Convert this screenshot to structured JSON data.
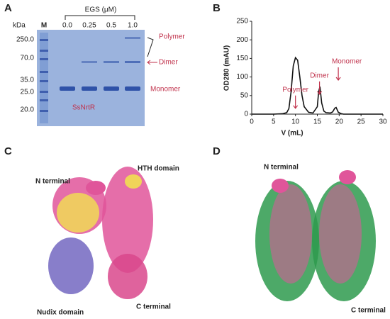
{
  "panels": [
    "A",
    "B",
    "C",
    "D"
  ],
  "panel_a": {
    "kda": "kDa",
    "marker_lane": "M",
    "egs": "EGS (μM)",
    "lanes": [
      "0.0",
      "0.25",
      "0.5",
      "1.0"
    ],
    "markers": [
      "250.0",
      "70.0",
      "35.0",
      "25.0",
      "20.0"
    ],
    "bands": [
      "Polymer",
      "Dimer",
      "Monomer"
    ],
    "protein": "SsNrtR"
  },
  "chart_data": {
    "type": "line",
    "xlabel": "V (mL)",
    "ylabel": "OD280 (mAU)",
    "xlim": [
      0,
      30
    ],
    "xticks": [
      0,
      5,
      10,
      15,
      20,
      25,
      30
    ],
    "ylim": [
      0,
      250
    ],
    "yticks": [
      0,
      50,
      100,
      150,
      200,
      250
    ],
    "annotations": [
      "Polymer",
      "Dimer",
      "Monomer"
    ],
    "series": [
      {
        "color": "#111111",
        "x": [
          0,
          5,
          7,
          8,
          8.5,
          9,
          9.5,
          10,
          10.5,
          11,
          11.5,
          12,
          13,
          14,
          15,
          15.3,
          15.6,
          16,
          16.5,
          17,
          18,
          18.5,
          19,
          19.3,
          19.8,
          20.5,
          21,
          25,
          30
        ],
        "values": [
          0,
          0,
          1,
          4,
          15,
          60,
          130,
          152,
          145,
          100,
          50,
          20,
          5,
          3,
          20,
          60,
          74,
          30,
          8,
          4,
          3,
          6,
          16,
          18,
          5,
          1,
          0,
          0,
          0
        ]
      }
    ]
  },
  "panel_c": {
    "n_terminal": "N terminal",
    "hth": "HTH domain",
    "nudix": "Nudix domain",
    "c_terminal": "C terminal"
  },
  "panel_d": {
    "n_terminal": "N terminal",
    "c_terminal": "C terminal"
  }
}
